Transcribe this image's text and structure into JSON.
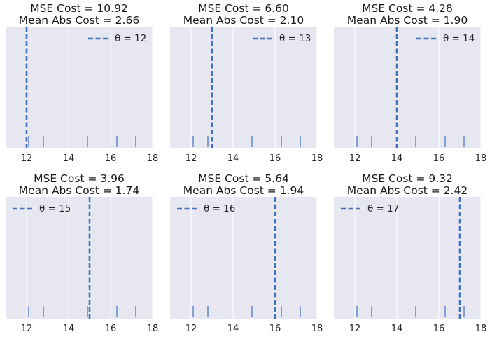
{
  "chart_data": [
    {
      "type": "scatter",
      "title": "MSE Cost = 10.92",
      "subtitle": "Mean Abs Cost = 2.66",
      "xlim": [
        11,
        18
      ],
      "xticks": [
        12,
        14,
        16,
        18
      ],
      "data_points": [
        12.1,
        12.8,
        14.9,
        16.3,
        17.2
      ],
      "theta": 12,
      "legend": "θ = 12",
      "legend_loc": "upper right",
      "grid": true
    },
    {
      "type": "scatter",
      "title": "MSE Cost = 6.60",
      "subtitle": "Mean Abs Cost = 2.10",
      "xlim": [
        11,
        18
      ],
      "xticks": [
        12,
        14,
        16,
        18
      ],
      "data_points": [
        12.1,
        12.8,
        14.9,
        16.3,
        17.2
      ],
      "theta": 13,
      "legend": "θ = 13",
      "legend_loc": "upper right",
      "grid": true
    },
    {
      "type": "scatter",
      "title": "MSE Cost = 4.28",
      "subtitle": "Mean Abs Cost = 1.90",
      "xlim": [
        11,
        18
      ],
      "xticks": [
        12,
        14,
        16,
        18
      ],
      "data_points": [
        12.1,
        12.8,
        14.9,
        16.3,
        17.2
      ],
      "theta": 14,
      "legend": "θ = 14",
      "legend_loc": "upper right",
      "grid": true
    },
    {
      "type": "scatter",
      "title": "MSE Cost = 3.96",
      "subtitle": "Mean Abs Cost = 1.74",
      "xlim": [
        11,
        18
      ],
      "xticks": [
        12,
        14,
        16,
        18
      ],
      "data_points": [
        12.1,
        12.8,
        14.9,
        16.3,
        17.2
      ],
      "theta": 15,
      "legend": "θ = 15",
      "legend_loc": "upper left",
      "grid": true
    },
    {
      "type": "scatter",
      "title": "MSE Cost = 5.64",
      "subtitle": "Mean Abs Cost = 1.94",
      "xlim": [
        11,
        18
      ],
      "xticks": [
        12,
        14,
        16,
        18
      ],
      "data_points": [
        12.1,
        12.8,
        14.9,
        16.3,
        17.2
      ],
      "theta": 16,
      "legend": "θ = 16",
      "legend_loc": "upper left",
      "grid": true
    },
    {
      "type": "scatter",
      "title": "MSE Cost = 9.32",
      "subtitle": "Mean Abs Cost = 2.42",
      "xlim": [
        11,
        18
      ],
      "xticks": [
        12,
        14,
        16,
        18
      ],
      "data_points": [
        12.1,
        12.8,
        14.9,
        16.3,
        17.2
      ],
      "theta": 17,
      "legend": "θ = 17",
      "legend_loc": "upper left",
      "grid": true
    }
  ],
  "colors": {
    "axes_background": "#e6e7f1",
    "grid": "#ffffff",
    "theta_line": "#4470c0",
    "rug": "#4470c0",
    "text": "#262626"
  }
}
